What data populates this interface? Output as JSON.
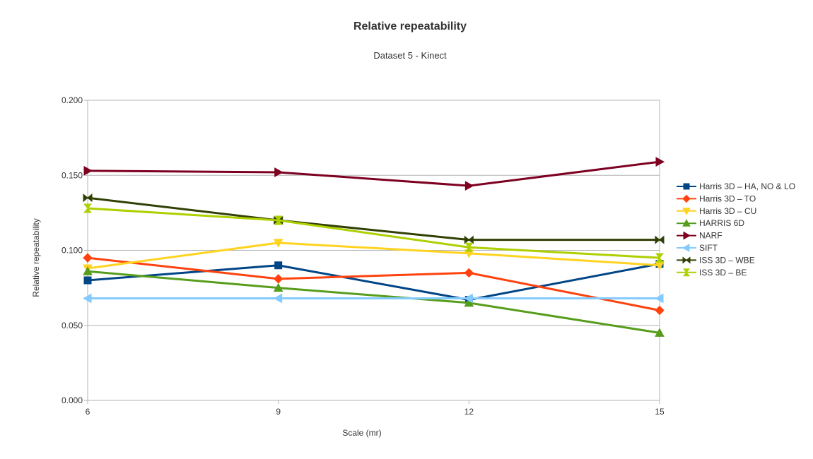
{
  "chart_data": {
    "type": "line",
    "title": "Relative repeatability",
    "subtitle": "Dataset 5 - Kinect",
    "xlabel": "Scale (mr)",
    "ylabel": "Relative repeatability",
    "x": [
      6,
      9,
      12,
      15
    ],
    "x_tick_labels": [
      "6",
      "9",
      "12",
      "15"
    ],
    "y_tick_labels": [
      "0.000",
      "0.050",
      "0.100",
      "0.150",
      "0.200"
    ],
    "y_ticks": [
      0,
      0.05,
      0.1,
      0.15,
      0.2
    ],
    "ylim": [
      0,
      0.2
    ],
    "grid": "horizontal",
    "legend_position": "right",
    "series": [
      {
        "name": "Harris 3D – HA, NO & LO",
        "color": "#004586",
        "marker": "square",
        "values": [
          0.08,
          0.09,
          0.067,
          0.091
        ]
      },
      {
        "name": "Harris 3D – TO",
        "color": "#ff420e",
        "marker": "diamond",
        "values": [
          0.095,
          0.081,
          0.085,
          0.06
        ]
      },
      {
        "name": "Harris 3D – CU",
        "color": "#ffd320",
        "marker": "triangle-down",
        "values": [
          0.088,
          0.105,
          0.098,
          0.09
        ]
      },
      {
        "name": "HARRIS 6D",
        "color": "#579d1c",
        "marker": "triangle-up",
        "values": [
          0.086,
          0.075,
          0.065,
          0.045
        ]
      },
      {
        "name": "NARF",
        "color": "#7e0021",
        "marker": "triangle-right",
        "values": [
          0.153,
          0.152,
          0.143,
          0.159
        ]
      },
      {
        "name": "SIFT",
        "color": "#83caff",
        "marker": "triangle-left",
        "values": [
          0.068,
          0.068,
          0.068,
          0.068
        ]
      },
      {
        "name": "ISS 3D – WBE",
        "color": "#314004",
        "marker": "bowtie",
        "values": [
          0.135,
          0.12,
          0.107,
          0.107
        ]
      },
      {
        "name": "ISS 3D – BE",
        "color": "#aecf00",
        "marker": "hourglass",
        "values": [
          0.128,
          0.12,
          0.102,
          0.095
        ]
      }
    ]
  }
}
